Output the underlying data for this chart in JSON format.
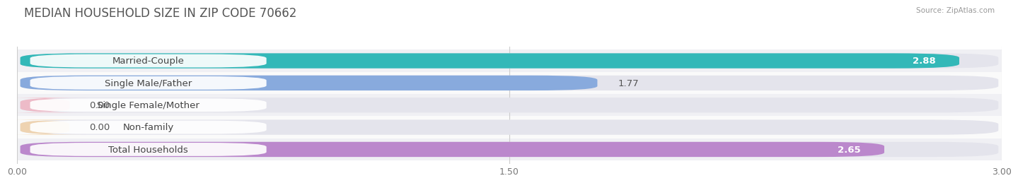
{
  "title": "MEDIAN HOUSEHOLD SIZE IN ZIP CODE 70662",
  "source": "Source: ZipAtlas.com",
  "categories": [
    "Married-Couple",
    "Single Male/Father",
    "Single Female/Mother",
    "Non-family",
    "Total Households"
  ],
  "values": [
    2.88,
    1.77,
    0.0,
    0.0,
    2.65
  ],
  "bar_colors": [
    "#33b8b8",
    "#88aadd",
    "#f4a0b0",
    "#f5c98a",
    "#bb88cc"
  ],
  "xlim": [
    0,
    3.0
  ],
  "xticks": [
    0.0,
    1.5,
    3.0
  ],
  "xtick_labels": [
    "0.00",
    "1.50",
    "3.00"
  ],
  "background_color": "#f5f5f5",
  "bar_bg_color": "#e4e4ec",
  "row_bg_colors": [
    "#f0f0f0",
    "#f8f8f8"
  ],
  "title_fontsize": 12,
  "label_fontsize": 9.5,
  "value_fontsize": 9.5
}
